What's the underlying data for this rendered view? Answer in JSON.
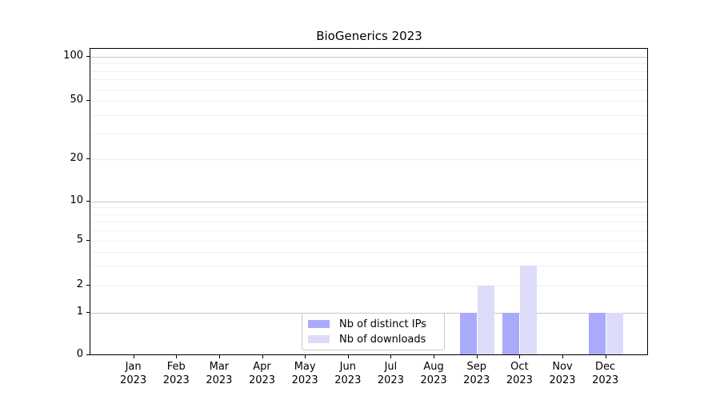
{
  "figure": {
    "title": "BioGenerics 2023"
  },
  "chart_data": {
    "type": "bar",
    "title": "BioGenerics 2023",
    "categories": [
      "Jan 2023",
      "Feb 2023",
      "Mar 2023",
      "Apr 2023",
      "May 2023",
      "Jun 2023",
      "Jul 2023",
      "Aug 2023",
      "Sep 2023",
      "Oct 2023",
      "Nov 2023",
      "Dec 2023"
    ],
    "series": [
      {
        "name": "Nb of distinct IPs",
        "color": "#aaaafa",
        "values": [
          0,
          0,
          0,
          0,
          0,
          0,
          0,
          0,
          1,
          1,
          0,
          1
        ]
      },
      {
        "name": "Nb of downloads",
        "color": "#dcdcfa",
        "values": [
          0,
          0,
          0,
          0,
          0,
          0,
          0,
          0,
          2,
          3,
          0,
          1
        ]
      }
    ],
    "xlabel": "",
    "ylabel": "",
    "yscale": "log-like with 0 baseline",
    "ytick_labels": [
      0,
      1,
      2,
      5,
      10,
      20,
      50,
      100
    ],
    "ylim": [
      0,
      100
    ],
    "grid": "horizontal major (1,10,100) + faint log minors",
    "legend": {
      "position": "bottom-center",
      "labels": [
        "Nb of distinct IPs",
        "Nb of downloads"
      ]
    }
  }
}
